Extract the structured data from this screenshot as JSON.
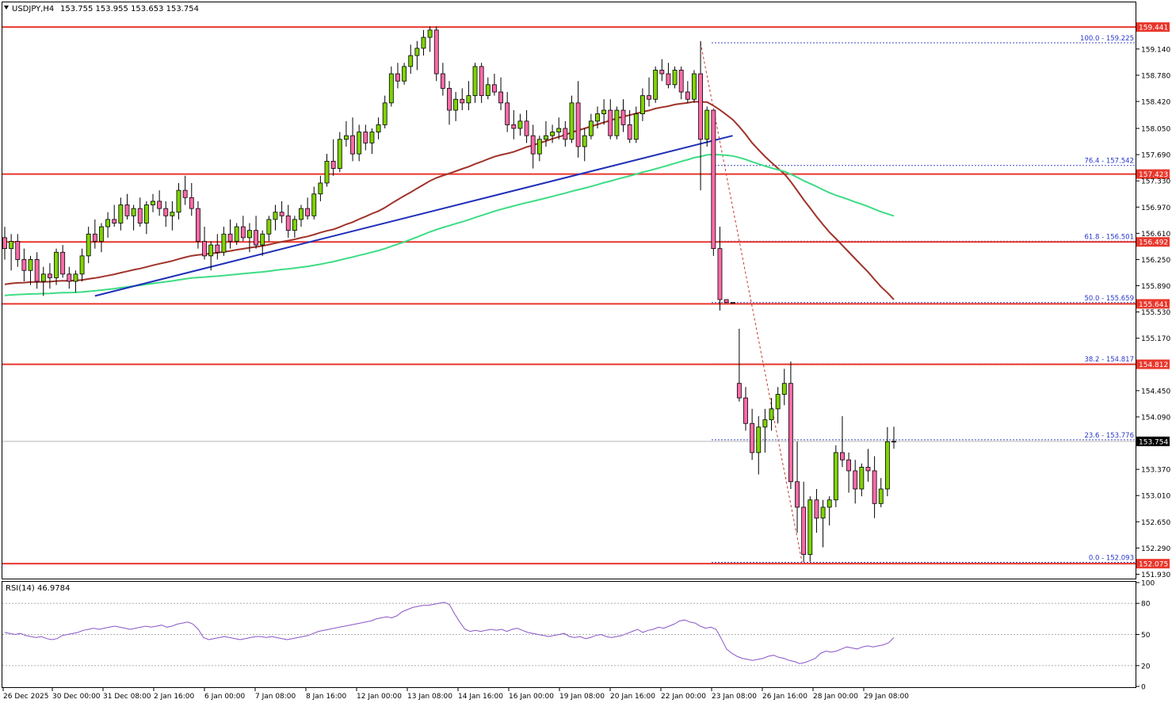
{
  "header": {
    "symbol": "USDJPY,H4",
    "ohlc": "153.755 153.955 153.653 153.754"
  },
  "colors": {
    "bull": "#7fd400",
    "bear": "#ff6aa8",
    "wick": "#000000",
    "hline": "#e8372c",
    "trendline": "#1f2fb8",
    "ma_slow": "#a0332a",
    "ma_fast": "#3ddc84",
    "fib_line": "#3b4bc4",
    "fib_text": "#2836c8",
    "rsi": "#8a55c8",
    "label_red": "#e8372c",
    "label_dark": "#000000"
  },
  "chart_data": {
    "type": "candlestick",
    "instrument": "USDJPY",
    "timeframe": "H4",
    "ylim": [
      151.87,
      159.78
    ],
    "y_ticks": [
      "159.140",
      "158.780",
      "158.420",
      "158.050",
      "157.690",
      "157.330",
      "156.970",
      "156.610",
      "156.250",
      "155.890",
      "155.530",
      "155.170",
      "154.450",
      "154.090",
      "153.370",
      "153.010",
      "152.650",
      "152.290",
      "151.930"
    ],
    "x_ticks": [
      "26 Dec 2025",
      "30 Dec 00:00",
      "31 Dec 08:00",
      "2 Jan 16:00",
      "6 Jan 00:00",
      "7 Jan 08:00",
      "8 Jan 16:00",
      "12 Jan 00:00",
      "13 Jan 08:00",
      "14 Jan 16:00",
      "16 Jan 00:00",
      "19 Jan 08:00",
      "20 Jan 16:00",
      "22 Jan 00:00",
      "23 Jan 08:00",
      "26 Jan 16:00",
      "28 Jan 00:00",
      "29 Jan 08:00"
    ],
    "horizontal_levels": [
      {
        "label": "159.441",
        "value": 159.441
      },
      {
        "label": "157.423",
        "value": 157.423
      },
      {
        "label": "156.492",
        "value": 156.492
      },
      {
        "label": "155.641",
        "value": 155.641
      },
      {
        "label": "154.812",
        "value": 154.812
      },
      {
        "label": "152.075",
        "value": 152.075
      }
    ],
    "current_price": {
      "label": "153.754",
      "value": 153.754
    },
    "fibonacci": [
      {
        "label": "100.0 - 159.225",
        "value": 159.225
      },
      {
        "label": "76.4 - 157.542",
        "value": 157.542
      },
      {
        "label": "61.8 - 156.501",
        "value": 156.501
      },
      {
        "label": "50.0 - 155.659",
        "value": 155.659
      },
      {
        "label": "38.2 - 154.817",
        "value": 154.817
      },
      {
        "label": "23.6 - 153.776",
        "value": 153.776
      },
      {
        "label": "0.0 - 152.093",
        "value": 152.093
      }
    ],
    "rsi": {
      "label": "RSI(14) 46.9784",
      "period": 14,
      "last": 46.9784,
      "levels": [
        80,
        50,
        20
      ],
      "scale_labels": [
        "100",
        "80",
        "50",
        "20",
        "0"
      ],
      "values": [
        52,
        51,
        50,
        51,
        49,
        48,
        47,
        48,
        46,
        45,
        46,
        49,
        50,
        51,
        52,
        54,
        55,
        56,
        55,
        56,
        57,
        58,
        57,
        56,
        55,
        56,
        57,
        58,
        57,
        58,
        59,
        57,
        58,
        60,
        61,
        62,
        60,
        55,
        47,
        45,
        46,
        47,
        48,
        47,
        46,
        45,
        46,
        47,
        48,
        48,
        47,
        48,
        47,
        46,
        45,
        46,
        47,
        48,
        49,
        51,
        53,
        54,
        55,
        56,
        57,
        58,
        59,
        60,
        61,
        62,
        63,
        65,
        66,
        67,
        66,
        68,
        72,
        74,
        76,
        77,
        78,
        78,
        79,
        80,
        81,
        79,
        70,
        62,
        55,
        53,
        54,
        53,
        54,
        55,
        54,
        55,
        53,
        55,
        56,
        54,
        52,
        51,
        50,
        49,
        48,
        49,
        50,
        51,
        48,
        47,
        48,
        46,
        47,
        49,
        50,
        48,
        47,
        48,
        49,
        51,
        53,
        55,
        52,
        54,
        55,
        57,
        56,
        58,
        60,
        63,
        64,
        62,
        61,
        58,
        56,
        57,
        55,
        46,
        36,
        32,
        29,
        27,
        26,
        25,
        26,
        27,
        29,
        30,
        28,
        27,
        25,
        24,
        22,
        23,
        25,
        27,
        32,
        34,
        33,
        34,
        36,
        38,
        37,
        36,
        38,
        39,
        38,
        39,
        40,
        42,
        47
      ],
      "ylim": [
        0,
        100
      ]
    },
    "candles": [
      [
        156.55,
        156.7,
        156.25,
        156.4
      ],
      [
        156.4,
        156.6,
        156.1,
        156.5
      ],
      [
        156.5,
        156.6,
        156.15,
        156.25
      ],
      [
        156.25,
        156.4,
        155.95,
        156.1
      ],
      [
        156.1,
        156.3,
        155.9,
        156.25
      ],
      [
        156.25,
        156.35,
        155.85,
        155.95
      ],
      [
        155.95,
        156.15,
        155.75,
        156.05
      ],
      [
        156.05,
        156.2,
        155.85,
        156.0
      ],
      [
        156.0,
        156.4,
        155.9,
        156.35
      ],
      [
        156.35,
        156.45,
        156.0,
        156.05
      ],
      [
        156.05,
        156.15,
        155.85,
        155.95
      ],
      [
        155.95,
        156.1,
        155.8,
        156.05
      ],
      [
        156.05,
        156.4,
        155.95,
        156.3
      ],
      [
        156.3,
        156.7,
        156.2,
        156.6
      ],
      [
        156.6,
        156.8,
        156.4,
        156.5
      ],
      [
        156.5,
        156.75,
        156.35,
        156.7
      ],
      [
        156.7,
        156.9,
        156.55,
        156.8
      ],
      [
        156.8,
        157.0,
        156.7,
        156.75
      ],
      [
        156.75,
        157.1,
        156.65,
        157.0
      ],
      [
        157.0,
        157.15,
        156.8,
        156.85
      ],
      [
        156.85,
        157.0,
        156.65,
        156.95
      ],
      [
        156.95,
        157.1,
        156.7,
        156.75
      ],
      [
        156.75,
        157.05,
        156.6,
        157.0
      ],
      [
        157.0,
        157.15,
        156.9,
        157.05
      ],
      [
        157.05,
        157.2,
        156.85,
        156.95
      ],
      [
        156.95,
        157.05,
        156.7,
        156.85
      ],
      [
        156.85,
        157.05,
        156.65,
        156.9
      ],
      [
        156.9,
        157.3,
        156.8,
        157.2
      ],
      [
        157.2,
        157.4,
        157.0,
        157.1
      ],
      [
        157.1,
        157.3,
        156.85,
        156.95
      ],
      [
        156.95,
        157.05,
        156.4,
        156.5
      ],
      [
        156.5,
        156.7,
        156.25,
        156.3
      ],
      [
        156.3,
        156.5,
        156.1,
        156.45
      ],
      [
        156.45,
        156.6,
        156.25,
        156.35
      ],
      [
        156.35,
        156.7,
        156.3,
        156.6
      ],
      [
        156.6,
        156.8,
        156.4,
        156.5
      ],
      [
        156.5,
        156.75,
        156.45,
        156.7
      ],
      [
        156.7,
        156.85,
        156.5,
        156.55
      ],
      [
        156.55,
        156.75,
        156.35,
        156.65
      ],
      [
        156.65,
        156.85,
        156.4,
        156.45
      ],
      [
        156.45,
        156.65,
        156.3,
        156.6
      ],
      [
        156.6,
        156.85,
        156.5,
        156.8
      ],
      [
        156.8,
        157.0,
        156.65,
        156.9
      ],
      [
        156.9,
        157.05,
        156.75,
        156.85
      ],
      [
        156.85,
        157.0,
        156.55,
        156.65
      ],
      [
        156.65,
        156.85,
        156.55,
        156.8
      ],
      [
        156.8,
        157.0,
        156.7,
        156.95
      ],
      [
        156.95,
        157.1,
        156.8,
        156.85
      ],
      [
        156.85,
        157.25,
        156.8,
        157.15
      ],
      [
        157.15,
        157.4,
        157.05,
        157.3
      ],
      [
        157.3,
        157.7,
        157.25,
        157.6
      ],
      [
        157.6,
        157.9,
        157.4,
        157.5
      ],
      [
        157.5,
        158.0,
        157.45,
        157.9
      ],
      [
        157.9,
        158.15,
        157.8,
        157.95
      ],
      [
        157.95,
        158.2,
        157.6,
        157.7
      ],
      [
        157.7,
        158.1,
        157.6,
        158.0
      ],
      [
        158.0,
        158.1,
        157.75,
        157.85
      ],
      [
        157.85,
        158.05,
        157.7,
        158.0
      ],
      [
        158.0,
        158.2,
        157.9,
        158.1
      ],
      [
        158.1,
        158.5,
        158.05,
        158.4
      ],
      [
        158.4,
        158.9,
        158.35,
        158.8
      ],
      [
        158.8,
        158.95,
        158.6,
        158.7
      ],
      [
        158.7,
        158.95,
        158.65,
        158.9
      ],
      [
        158.9,
        159.2,
        158.8,
        159.05
      ],
      [
        159.05,
        159.25,
        158.85,
        159.15
      ],
      [
        159.15,
        159.4,
        159.05,
        159.3
      ],
      [
        159.3,
        159.45,
        159.1,
        159.4
      ],
      [
        159.4,
        159.45,
        158.7,
        158.8
      ],
      [
        158.8,
        158.95,
        158.5,
        158.6
      ],
      [
        158.6,
        158.7,
        158.1,
        158.3
      ],
      [
        158.3,
        158.55,
        158.15,
        158.45
      ],
      [
        158.45,
        158.6,
        158.3,
        158.4
      ],
      [
        158.4,
        158.7,
        158.3,
        158.5
      ],
      [
        158.5,
        158.95,
        158.4,
        158.9
      ],
      [
        158.9,
        158.95,
        158.4,
        158.5
      ],
      [
        158.5,
        158.75,
        158.45,
        158.65
      ],
      [
        158.65,
        158.8,
        158.5,
        158.55
      ],
      [
        158.55,
        158.75,
        158.3,
        158.4
      ],
      [
        158.4,
        158.55,
        158.0,
        158.1
      ],
      [
        158.1,
        158.3,
        157.9,
        158.05
      ],
      [
        158.05,
        158.25,
        157.95,
        158.15
      ],
      [
        158.15,
        158.3,
        157.85,
        157.95
      ],
      [
        157.95,
        158.1,
        157.5,
        157.7
      ],
      [
        157.7,
        157.95,
        157.6,
        157.9
      ],
      [
        157.9,
        158.15,
        157.8,
        157.95
      ],
      [
        157.95,
        158.1,
        157.85,
        158.0
      ],
      [
        158.0,
        158.2,
        157.9,
        158.05
      ],
      [
        158.05,
        158.15,
        157.8,
        157.9
      ],
      [
        157.9,
        158.5,
        157.85,
        158.4
      ],
      [
        158.4,
        158.7,
        157.65,
        157.8
      ],
      [
        157.8,
        158.05,
        157.6,
        157.95
      ],
      [
        157.95,
        158.25,
        157.9,
        158.15
      ],
      [
        158.15,
        158.35,
        158.05,
        158.25
      ],
      [
        158.25,
        158.45,
        158.1,
        158.3
      ],
      [
        158.3,
        158.45,
        157.9,
        157.95
      ],
      [
        157.95,
        158.35,
        157.9,
        158.3
      ],
      [
        158.3,
        158.45,
        158.0,
        158.1
      ],
      [
        158.1,
        158.3,
        157.85,
        157.9
      ],
      [
        157.9,
        158.35,
        157.85,
        158.25
      ],
      [
        158.25,
        158.6,
        158.15,
        158.5
      ],
      [
        158.5,
        158.75,
        158.35,
        158.45
      ],
      [
        158.45,
        158.9,
        158.4,
        158.85
      ],
      [
        158.85,
        159.0,
        158.7,
        158.8
      ],
      [
        158.8,
        158.95,
        158.6,
        158.65
      ],
      [
        158.65,
        158.9,
        158.6,
        158.85
      ],
      [
        158.85,
        158.9,
        158.45,
        158.55
      ],
      [
        158.55,
        158.7,
        158.4,
        158.45
      ],
      [
        158.45,
        158.85,
        158.4,
        158.8
      ],
      [
        158.8,
        159.25,
        157.2,
        157.9
      ],
      [
        157.9,
        158.35,
        157.8,
        158.3
      ],
      [
        158.3,
        158.3,
        156.3,
        156.4
      ],
      [
        156.4,
        156.7,
        155.55,
        155.7
      ],
      [
        155.7,
        155.7,
        155.65,
        155.66
      ],
      [
        155.66,
        155.66,
        155.65,
        155.65
      ],
      [
        154.55,
        155.3,
        154.3,
        154.35
      ],
      [
        154.35,
        154.5,
        153.9,
        154.0
      ],
      [
        154.0,
        154.2,
        153.5,
        153.6
      ],
      [
        153.6,
        154.1,
        153.3,
        153.95
      ],
      [
        153.95,
        154.2,
        153.6,
        154.05
      ],
      [
        154.05,
        154.35,
        153.9,
        154.2
      ],
      [
        154.2,
        154.5,
        154.0,
        154.4
      ],
      [
        154.4,
        154.75,
        154.25,
        154.55
      ],
      [
        154.55,
        154.85,
        153.1,
        153.2
      ],
      [
        153.2,
        153.75,
        152.5,
        152.85
      ],
      [
        152.85,
        153.2,
        152.1,
        152.2
      ],
      [
        152.2,
        153.0,
        152.1,
        152.95
      ],
      [
        152.95,
        153.1,
        152.5,
        152.7
      ],
      [
        152.7,
        152.95,
        152.3,
        152.85
      ],
      [
        152.85,
        153.0,
        152.6,
        152.95
      ],
      [
        152.95,
        153.7,
        152.85,
        153.6
      ],
      [
        153.6,
        154.1,
        153.4,
        153.5
      ],
      [
        153.5,
        153.6,
        153.05,
        153.35
      ],
      [
        153.35,
        153.5,
        152.9,
        153.1
      ],
      [
        153.1,
        153.45,
        153.0,
        153.4
      ],
      [
        153.4,
        153.65,
        153.2,
        153.35
      ],
      [
        153.35,
        153.55,
        152.7,
        152.9
      ],
      [
        152.9,
        153.25,
        152.85,
        153.1
      ],
      [
        153.1,
        153.95,
        153.0,
        153.75
      ],
      [
        153.755,
        153.955,
        153.653,
        153.754
      ]
    ]
  }
}
